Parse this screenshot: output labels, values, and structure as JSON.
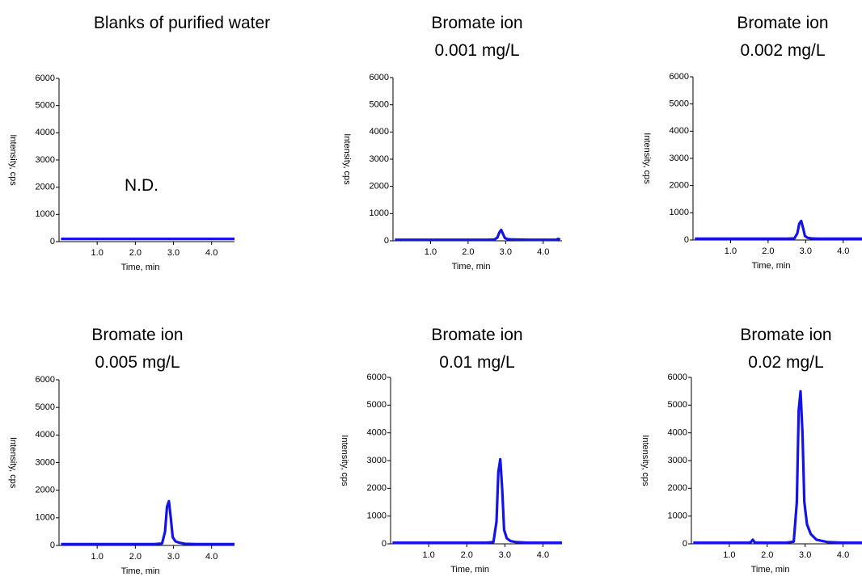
{
  "chart_data": [
    {
      "type": "line",
      "title": "Blanks of purified water",
      "annotation": "N.D.",
      "xlabel": "Time, min",
      "ylabel": "Intensity, cps",
      "color": "#1414e6",
      "x": [
        0.05,
        1.0,
        2.0,
        3.0,
        4.0,
        4.6
      ],
      "values": [
        100,
        100,
        100,
        100,
        100,
        100
      ],
      "xlim": [
        0,
        4.6
      ],
      "ylim": [
        0,
        6000
      ],
      "xticks": [
        {
          "value": 1,
          "label": "1.0"
        },
        {
          "value": 2,
          "label": "2.0"
        },
        {
          "value": 3,
          "label": "3.0"
        },
        {
          "value": 4,
          "label": "4.0"
        }
      ],
      "yticks": [
        0,
        1000,
        2000,
        3000,
        4000,
        5000,
        6000
      ]
    },
    {
      "type": "line",
      "title": "Bromate ion",
      "subtitle": "0.001 mg/L",
      "xlabel": "Time, min",
      "ylabel": "Intensity, cps",
      "color": "#1414e6",
      "x": [
        0.05,
        0.5,
        1.0,
        1.5,
        2.0,
        2.5,
        2.7,
        2.78,
        2.83,
        2.88,
        2.93,
        2.98,
        3.05,
        3.15,
        3.3,
        3.6,
        4.0,
        4.35,
        4.4,
        4.45
      ],
      "values": [
        40,
        40,
        40,
        40,
        40,
        40,
        45,
        120,
        300,
        400,
        250,
        100,
        60,
        50,
        45,
        40,
        40,
        40,
        70,
        40
      ],
      "xlim": [
        0,
        4.5
      ],
      "ylim": [
        0,
        6000
      ],
      "xticks": [
        {
          "value": 1,
          "label": "1.0"
        },
        {
          "value": 2,
          "label": "2.0"
        },
        {
          "value": 3,
          "label": "3.0"
        },
        {
          "value": 4,
          "label": "4.0"
        }
      ],
      "yticks": [
        0,
        1000,
        2000,
        3000,
        4000,
        5000,
        6000
      ]
    },
    {
      "type": "line",
      "title": "Bromate ion",
      "subtitle": "0.002 mg/L",
      "xlabel": "Time, min",
      "ylabel": "Intensity, cps",
      "color": "#1414e6",
      "x": [
        0.05,
        0.5,
        1.0,
        1.5,
        2.0,
        2.5,
        2.7,
        2.78,
        2.83,
        2.88,
        2.93,
        2.98,
        3.05,
        3.15,
        3.3,
        3.6,
        4.0,
        4.5
      ],
      "values": [
        50,
        50,
        50,
        50,
        50,
        50,
        60,
        250,
        600,
        700,
        450,
        150,
        80,
        60,
        50,
        50,
        50,
        50
      ],
      "xlim": [
        0,
        4.5
      ],
      "ylim": [
        0,
        6000
      ],
      "xticks": [
        {
          "value": 1,
          "label": "1.0"
        },
        {
          "value": 2,
          "label": "2.0"
        },
        {
          "value": 3,
          "label": "3.0"
        },
        {
          "value": 4,
          "label": "4.0"
        }
      ],
      "yticks": [
        0,
        1000,
        2000,
        3000,
        4000,
        5000,
        6000
      ]
    },
    {
      "type": "line",
      "title": "Bromate ion",
      "subtitle": "0.005 mg/L",
      "xlabel": "Time, min",
      "ylabel": "Intensity, cps",
      "color": "#1414e6",
      "x": [
        0.05,
        0.5,
        1.0,
        1.5,
        2.0,
        2.5,
        2.7,
        2.78,
        2.83,
        2.88,
        2.93,
        2.98,
        3.05,
        3.15,
        3.3,
        3.6,
        4.0,
        4.6
      ],
      "values": [
        50,
        50,
        50,
        50,
        50,
        50,
        70,
        500,
        1400,
        1600,
        1000,
        300,
        150,
        100,
        60,
        50,
        50,
        50
      ],
      "xlim": [
        0,
        4.6
      ],
      "ylim": [
        0,
        6000
      ],
      "xticks": [
        {
          "value": 1,
          "label": "1.0"
        },
        {
          "value": 2,
          "label": "2.0"
        },
        {
          "value": 3,
          "label": "3.0"
        },
        {
          "value": 4,
          "label": "4.0"
        }
      ],
      "yticks": [
        0,
        1000,
        2000,
        3000,
        4000,
        5000,
        6000
      ]
    },
    {
      "type": "line",
      "title": "Bromate ion",
      "subtitle": "0.01 mg/L",
      "xlabel": "Time, min",
      "ylabel": "Intensity, cps",
      "color": "#1414e6",
      "x": [
        0.05,
        0.5,
        1.0,
        1.5,
        2.0,
        2.5,
        2.7,
        2.78,
        2.83,
        2.88,
        2.93,
        2.98,
        3.05,
        3.15,
        3.3,
        3.6,
        4.0,
        4.5
      ],
      "values": [
        40,
        40,
        40,
        40,
        40,
        40,
        60,
        800,
        2600,
        3050,
        2000,
        500,
        200,
        100,
        60,
        40,
        40,
        40
      ],
      "xlim": [
        0,
        4.5
      ],
      "ylim": [
        0,
        6000
      ],
      "xticks": [
        {
          "value": 1,
          "label": "1.0"
        },
        {
          "value": 2,
          "label": "2.0"
        },
        {
          "value": 3,
          "label": "3.0"
        },
        {
          "value": 4,
          "label": "4.0"
        }
      ],
      "yticks": [
        0,
        1000,
        2000,
        3000,
        4000,
        5000,
        6000
      ]
    },
    {
      "type": "line",
      "title": "Bromate ion",
      "subtitle": "0.02 mg/L",
      "xlabel": "Time, min",
      "ylabel": "Intensity, cps",
      "color": "#1414e6",
      "x": [
        0.05,
        0.5,
        1.0,
        1.5,
        1.57,
        1.62,
        1.67,
        2.0,
        2.5,
        2.7,
        2.78,
        2.83,
        2.88,
        2.93,
        2.98,
        3.05,
        3.15,
        3.3,
        3.6,
        4.0,
        4.5
      ],
      "values": [
        40,
        40,
        40,
        40,
        60,
        150,
        50,
        40,
        40,
        80,
        1500,
        4800,
        5500,
        4000,
        1500,
        700,
        350,
        150,
        60,
        40,
        40
      ],
      "xlim": [
        0,
        4.5
      ],
      "ylim": [
        0,
        6000
      ],
      "xticks": [
        {
          "value": 1,
          "label": "1.0"
        },
        {
          "value": 2,
          "label": "2.0"
        },
        {
          "value": 3,
          "label": "3.0"
        },
        {
          "value": 4,
          "label": "4.0"
        }
      ],
      "yticks": [
        0,
        1000,
        2000,
        3000,
        4000,
        5000,
        6000
      ]
    }
  ]
}
